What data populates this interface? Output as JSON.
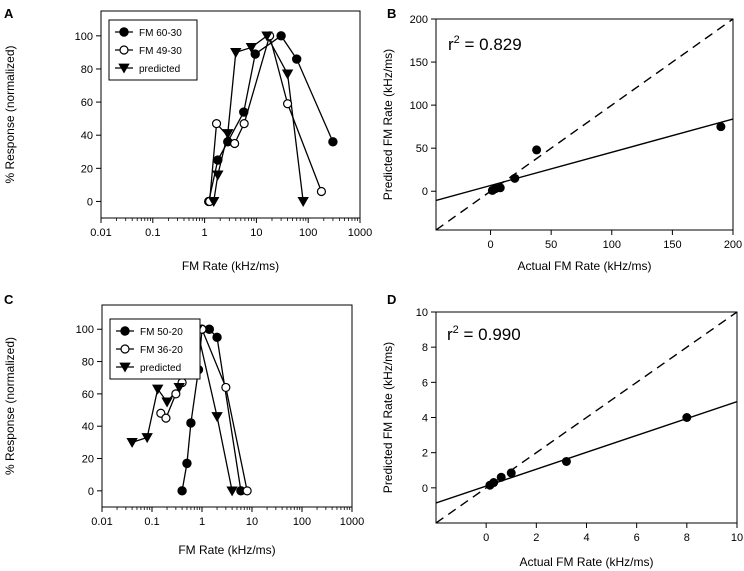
{
  "chart_data": [
    {
      "panel": "A",
      "type": "line",
      "x_scale": "log",
      "xlabel": "FM Rate (kHz/ms)",
      "ylabel": "% Response (normalized)",
      "xlim": [
        0.01,
        1000
      ],
      "ylim": [
        -10,
        115
      ],
      "x_ticks": [
        0.01,
        0.1,
        1,
        10,
        100,
        1000
      ],
      "x_tick_labels": [
        "0.01",
        "0.1",
        "1",
        "10",
        "100",
        "1000"
      ],
      "y_ticks": [
        0,
        20,
        40,
        60,
        80,
        100
      ],
      "y_tick_labels": [
        "0",
        "20",
        "40",
        "60",
        "80",
        "100"
      ],
      "legend": "top-left",
      "series": [
        {
          "name": "FM 60-30",
          "marker": "filled-circle",
          "x": [
            1.2,
            1.8,
            2.8,
            5.7,
            9.5,
            30,
            60,
            300
          ],
          "y": [
            0,
            25,
            36,
            54,
            89,
            100,
            86,
            36
          ]
        },
        {
          "name": "FM 49-30",
          "marker": "open-circle",
          "x": [
            1.25,
            1.7,
            3.8,
            5.8,
            18,
            40,
            180
          ],
          "y": [
            0,
            47,
            35,
            47,
            100,
            59,
            6
          ]
        },
        {
          "name": "predicted",
          "marker": "filled-triangle-down",
          "x": [
            1.5,
            1.8,
            2.8,
            4.0,
            8.0,
            16,
            40,
            80
          ],
          "y": [
            0,
            16,
            41,
            90,
            93,
            100,
            77,
            0
          ]
        }
      ]
    },
    {
      "panel": "B",
      "type": "scatter",
      "xlabel": "Actual FM Rate (kHz/ms)",
      "ylabel": "Predicted FM Rate (kHz/ms)",
      "xlim": [
        -45,
        200
      ],
      "ylim": [
        -45,
        200
      ],
      "x_ticks": [
        0,
        50,
        100,
        150,
        200
      ],
      "x_tick_labels": [
        "0",
        "50",
        "100",
        "150",
        "200"
      ],
      "y_ticks": [
        0,
        50,
        100,
        150,
        200
      ],
      "y_tick_labels": [
        "0",
        "50",
        "100",
        "150",
        "200"
      ],
      "annotation": {
        "prefix": "r",
        "sup": "2",
        "suffix": " = 0.829"
      },
      "points": {
        "x": [
          1.5,
          4,
          8,
          20,
          38,
          190
        ],
        "y": [
          1,
          3,
          4,
          15,
          48,
          75
        ]
      },
      "identity_line": true,
      "fit_line": {
        "slope": 0.386,
        "intercept": 6.7
      }
    },
    {
      "panel": "C",
      "type": "line",
      "x_scale": "log",
      "xlabel": "FM Rate (kHz/ms)",
      "ylabel": "% Response (normalized)",
      "xlim": [
        0.01,
        1000
      ],
      "ylim": [
        -10,
        115
      ],
      "x_ticks": [
        0.01,
        0.1,
        1,
        10,
        100,
        1000
      ],
      "x_tick_labels": [
        "0.01",
        "0.1",
        "1",
        "10",
        "100",
        "1000"
      ],
      "y_ticks": [
        0,
        20,
        40,
        60,
        80,
        100
      ],
      "y_tick_labels": [
        "0",
        "20",
        "40",
        "60",
        "80",
        "100"
      ],
      "legend": "top-left",
      "series": [
        {
          "name": "FM 50-20",
          "marker": "filled-circle",
          "x": [
            0.4,
            0.5,
            0.6,
            0.85,
            1.0,
            1.4,
            2.0,
            6.0
          ],
          "y": [
            0,
            17,
            42,
            75,
            100,
            100,
            95,
            0
          ]
        },
        {
          "name": "FM 36-20",
          "marker": "open-circle",
          "x": [
            0.15,
            0.19,
            0.3,
            0.4,
            0.6,
            1.0,
            3.0,
            8.0
          ],
          "y": [
            48,
            45,
            60,
            67,
            87,
            100,
            64,
            0
          ]
        },
        {
          "name": "predicted",
          "marker": "filled-triangle-down",
          "x": [
            0.04,
            0.08,
            0.13,
            0.2,
            0.35,
            0.8,
            2.0,
            4.0
          ],
          "y": [
            30,
            33,
            63,
            55,
            64,
            100,
            46,
            0
          ]
        }
      ]
    },
    {
      "panel": "D",
      "type": "scatter",
      "xlabel": "Actual FM Rate (kHz/ms)",
      "ylabel": "Predicted FM Rate (kHz/ms)",
      "xlim": [
        -2,
        10
      ],
      "ylim": [
        -2,
        10
      ],
      "x_ticks": [
        0,
        2,
        4,
        6,
        8,
        10
      ],
      "x_tick_labels": [
        "0",
        "2",
        "4",
        "6",
        "8",
        "10"
      ],
      "y_ticks": [
        0,
        2,
        4,
        6,
        8,
        10
      ],
      "y_tick_labels": [
        "0",
        "2",
        "4",
        "6",
        "8",
        "10"
      ],
      "annotation": {
        "prefix": "r",
        "sup": "2",
        "suffix": " = 0.990"
      },
      "points": {
        "x": [
          0.15,
          0.3,
          0.6,
          1.0,
          3.2,
          8.0
        ],
        "y": [
          0.15,
          0.3,
          0.6,
          0.85,
          1.5,
          4.0
        ]
      },
      "identity_line": true,
      "fit_line": {
        "slope": 0.48,
        "intercept": 0.1
      }
    }
  ]
}
